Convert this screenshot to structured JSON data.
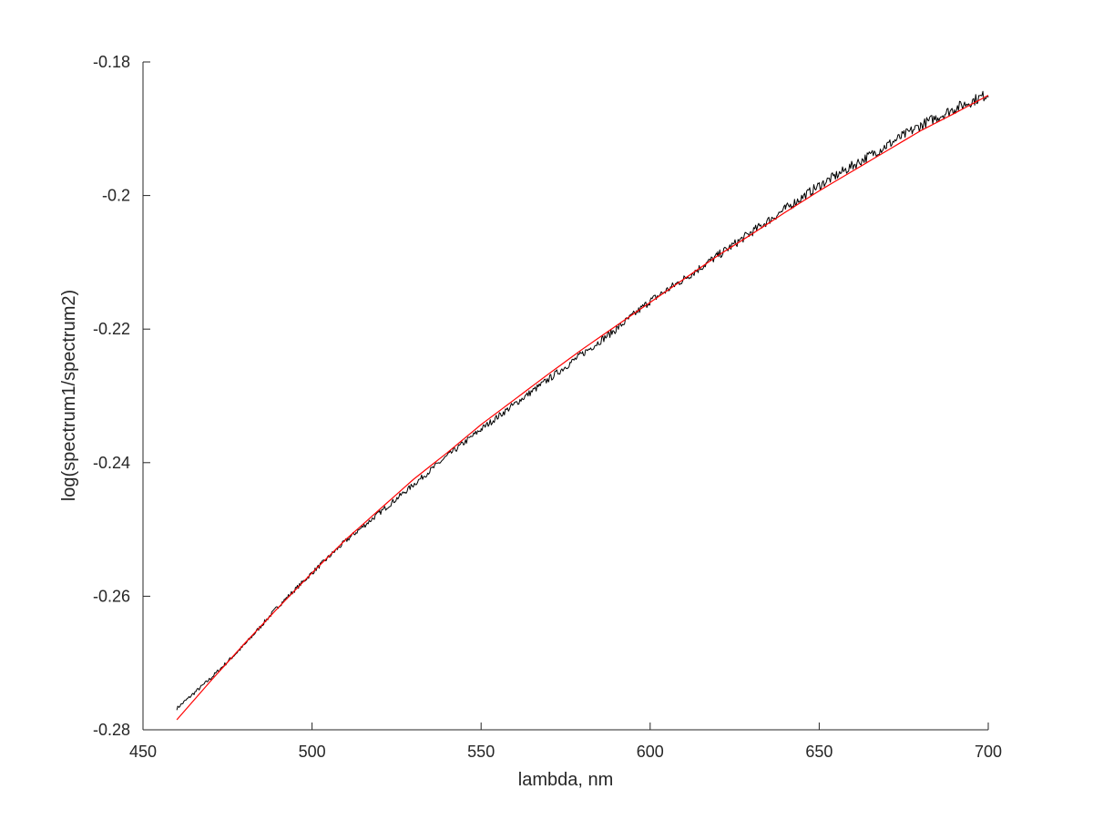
{
  "chart_data": {
    "type": "line",
    "title": "",
    "xlabel": "lambda, nm",
    "ylabel": "log(spectrum1/spectrum2)",
    "xlim": [
      450,
      700
    ],
    "ylim": [
      -0.28,
      -0.18
    ],
    "x_ticks": [
      450,
      500,
      550,
      600,
      650,
      700
    ],
    "x_tick_labels": [
      "450",
      "500",
      "550",
      "600",
      "650",
      "700"
    ],
    "y_ticks": [
      -0.28,
      -0.26,
      -0.24,
      -0.22,
      -0.2,
      -0.18
    ],
    "y_tick_labels": [
      "-0.28",
      "-0.26",
      "-0.24",
      "-0.22",
      "-0.2",
      "-0.18"
    ],
    "grid": false,
    "legend": "none",
    "series": [
      {
        "color": "#000000",
        "style": "noisy measured",
        "x": [
          460,
          470,
          480,
          490,
          500,
          510,
          520,
          530,
          540,
          550,
          560,
          570,
          580,
          590,
          600,
          610,
          620,
          630,
          640,
          650,
          660,
          670,
          680,
          690,
          700
        ],
        "y": [
          -0.2768,
          -0.2723,
          -0.2673,
          -0.2615,
          -0.2565,
          -0.2517,
          -0.2475,
          -0.2433,
          -0.239,
          -0.235,
          -0.2312,
          -0.2275,
          -0.2237,
          -0.22,
          -0.2158,
          -0.2125,
          -0.209,
          -0.2055,
          -0.202,
          -0.1985,
          -0.1955,
          -0.1925,
          -0.1895,
          -0.187,
          -0.1848
        ]
      },
      {
        "color": "#ff0000",
        "style": "fit",
        "x": [
          460,
          470,
          480,
          490,
          500,
          510,
          520,
          530,
          540,
          550,
          560,
          570,
          580,
          590,
          600,
          610,
          620,
          630,
          640,
          650,
          660,
          670,
          680,
          690,
          700
        ],
        "y": [
          -0.2785,
          -0.2727,
          -0.2671,
          -0.2617,
          -0.2565,
          -0.2515,
          -0.247,
          -0.2425,
          -0.2385,
          -0.2343,
          -0.2305,
          -0.2267,
          -0.223,
          -0.2195,
          -0.216,
          -0.2125,
          -0.209,
          -0.2058,
          -0.2025,
          -0.1993,
          -0.1963,
          -0.1933,
          -0.1903,
          -0.1877,
          -0.185
        ]
      }
    ]
  }
}
